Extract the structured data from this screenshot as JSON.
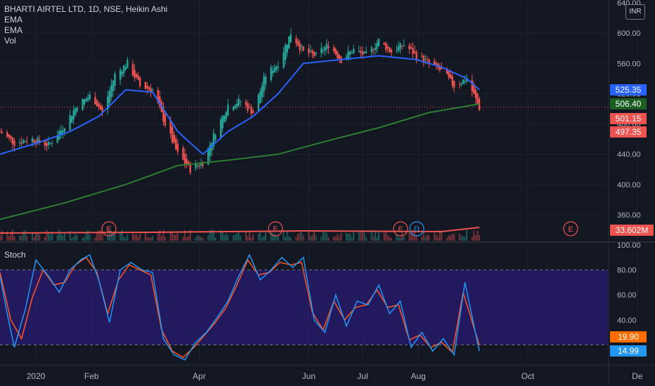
{
  "legend": {
    "title": "BHARTI AIRTEL LTD, 1D, NSE, Heikin Ashi",
    "line2": "EMA",
    "line3": "EMA",
    "line4": "Vol"
  },
  "price_axis": {
    "ticks": [
      "640.00",
      "600.00",
      "560.00",
      "520.00",
      "480.00",
      "440.00",
      "400.00",
      "360.00"
    ],
    "currency": "INR",
    "badges": {
      "ema_fast": "525.35",
      "ema_slow": "506.40",
      "close": "501.15",
      "low": "497.35",
      "volume": "33.602M"
    }
  },
  "stoch_axis": {
    "label": "Stoch",
    "ticks": [
      "100.00",
      "80.00",
      "60.00",
      "40.00"
    ],
    "badges": {
      "d": "19.90",
      "k": "14.99"
    }
  },
  "time_axis": {
    "labels": [
      "2020",
      "Feb",
      "Apr",
      "Jun",
      "Jul",
      "Aug",
      "Oct",
      "De"
    ]
  },
  "earnings_markers": [
    "E",
    "E",
    "E",
    "D",
    "E"
  ],
  "colors": {
    "background": "#131722",
    "up": "#26a69a",
    "down": "#ef5350",
    "ema_fast": "#2962ff",
    "ema_slow": "#2e7d32",
    "stoch_k": "#2196f3",
    "stoch_d": "#ff5722",
    "stoch_band": "#311b92"
  },
  "chart_data": {
    "type": "line",
    "title": "BHARTI AIRTEL LTD, 1D, NSE, Heikin Ashi",
    "price_range": [
      345,
      640
    ],
    "stoch_range": [
      0,
      100
    ],
    "price_close": [
      [
        "2019-12-12",
        470
      ],
      [
        "2019-12-20",
        455
      ],
      [
        "2019-12-30",
        460
      ],
      [
        "2020-01-08",
        452
      ],
      [
        "2020-01-16",
        475
      ],
      [
        "2020-01-24",
        505
      ],
      [
        "2020-02-01",
        518
      ],
      [
        "2020-02-07",
        495
      ],
      [
        "2020-02-14",
        545
      ],
      [
        "2020-02-21",
        560
      ],
      [
        "2020-02-28",
        530
      ],
      [
        "2020-03-06",
        525
      ],
      [
        "2020-03-13",
        480
      ],
      [
        "2020-03-20",
        440
      ],
      [
        "2020-03-27",
        420
      ],
      [
        "2020-04-03",
        430
      ],
      [
        "2020-04-10",
        470
      ],
      [
        "2020-04-17",
        505
      ],
      [
        "2020-04-24",
        510
      ],
      [
        "2020-05-01",
        495
      ],
      [
        "2020-05-08",
        545
      ],
      [
        "2020-05-15",
        560
      ],
      [
        "2020-05-22",
        600
      ],
      [
        "2020-05-29",
        575
      ],
      [
        "2020-06-05",
        570
      ],
      [
        "2020-06-12",
        585
      ],
      [
        "2020-06-19",
        565
      ],
      [
        "2020-06-26",
        578
      ],
      [
        "2020-07-03",
        570
      ],
      [
        "2020-07-10",
        590
      ],
      [
        "2020-07-17",
        575
      ],
      [
        "2020-07-24",
        585
      ],
      [
        "2020-07-31",
        570
      ],
      [
        "2020-08-07",
        560
      ],
      [
        "2020-08-14",
        550
      ],
      [
        "2020-08-21",
        530
      ],
      [
        "2020-08-28",
        540
      ],
      [
        "2020-09-04",
        501.15
      ]
    ],
    "ema_fast": [
      [
        "2019-12-12",
        440
      ],
      [
        "2020-01-02",
        455
      ],
      [
        "2020-01-20",
        470
      ],
      [
        "2020-02-05",
        490
      ],
      [
        "2020-02-20",
        525
      ],
      [
        "2020-03-06",
        522
      ],
      [
        "2020-03-20",
        470
      ],
      [
        "2020-04-03",
        440
      ],
      [
        "2020-04-17",
        470
      ],
      [
        "2020-05-01",
        490
      ],
      [
        "2020-05-15",
        520
      ],
      [
        "2020-05-29",
        560
      ],
      [
        "2020-06-19",
        565
      ],
      [
        "2020-07-10",
        570
      ],
      [
        "2020-07-31",
        565
      ],
      [
        "2020-08-14",
        555
      ],
      [
        "2020-08-28",
        540
      ],
      [
        "2020-09-04",
        525.35
      ]
    ],
    "ema_slow": [
      [
        "2019-12-12",
        354
      ],
      [
        "2020-01-16",
        375
      ],
      [
        "2020-02-20",
        400
      ],
      [
        "2020-03-20",
        425
      ],
      [
        "2020-04-17",
        432
      ],
      [
        "2020-05-15",
        440
      ],
      [
        "2020-06-12",
        458
      ],
      [
        "2020-07-10",
        475
      ],
      [
        "2020-08-07",
        495
      ],
      [
        "2020-09-04",
        506.4
      ]
    ],
    "volume_ma": [
      [
        "2019-12-12",
        0.55
      ],
      [
        "2020-03-06",
        0.6
      ],
      [
        "2020-05-29",
        0.7
      ],
      [
        "2020-08-14",
        0.65
      ],
      [
        "2020-09-04",
        0.95
      ]
    ],
    "stoch_k": [
      [
        "2019-12-12",
        75
      ],
      [
        "2019-12-16",
        45
      ],
      [
        "2019-12-20",
        18
      ],
      [
        "2019-12-26",
        48
      ],
      [
        "2020-01-01",
        88
      ],
      [
        "2020-01-08",
        75
      ],
      [
        "2020-01-14",
        62
      ],
      [
        "2020-01-20",
        80
      ],
      [
        "2020-01-26",
        88
      ],
      [
        "2020-01-31",
        92
      ],
      [
        "2020-02-05",
        72
      ],
      [
        "2020-02-11",
        38
      ],
      [
        "2020-02-17",
        80
      ],
      [
        "2020-02-23",
        86
      ],
      [
        "2020-02-29",
        80
      ],
      [
        "2020-03-06",
        78
      ],
      [
        "2020-03-12",
        25
      ],
      [
        "2020-03-18",
        12
      ],
      [
        "2020-03-24",
        8
      ],
      [
        "2020-03-30",
        22
      ],
      [
        "2020-04-05",
        30
      ],
      [
        "2020-04-11",
        42
      ],
      [
        "2020-04-17",
        55
      ],
      [
        "2020-04-23",
        75
      ],
      [
        "2020-04-29",
        92
      ],
      [
        "2020-05-05",
        72
      ],
      [
        "2020-05-11",
        80
      ],
      [
        "2020-05-17",
        90
      ],
      [
        "2020-05-23",
        82
      ],
      [
        "2020-05-29",
        90
      ],
      [
        "2020-06-04",
        40
      ],
      [
        "2020-06-10",
        30
      ],
      [
        "2020-06-16",
        60
      ],
      [
        "2020-06-22",
        35
      ],
      [
        "2020-06-28",
        55
      ],
      [
        "2020-07-04",
        52
      ],
      [
        "2020-07-10",
        68
      ],
      [
        "2020-07-16",
        45
      ],
      [
        "2020-07-22",
        55
      ],
      [
        "2020-07-28",
        18
      ],
      [
        "2020-08-03",
        30
      ],
      [
        "2020-08-09",
        15
      ],
      [
        "2020-08-15",
        25
      ],
      [
        "2020-08-21",
        12
      ],
      [
        "2020-08-27",
        70
      ],
      [
        "2020-09-04",
        14.99
      ]
    ],
    "stoch_d": [
      [
        "2019-12-12",
        78
      ],
      [
        "2019-12-18",
        40
      ],
      [
        "2019-12-24",
        25
      ],
      [
        "2019-12-30",
        58
      ],
      [
        "2020-01-05",
        80
      ],
      [
        "2020-01-11",
        68
      ],
      [
        "2020-01-17",
        70
      ],
      [
        "2020-01-23",
        84
      ],
      [
        "2020-01-29",
        90
      ],
      [
        "2020-02-04",
        78
      ],
      [
        "2020-02-10",
        45
      ],
      [
        "2020-02-16",
        72
      ],
      [
        "2020-02-22",
        84
      ],
      [
        "2020-02-28",
        80
      ],
      [
        "2020-03-05",
        76
      ],
      [
        "2020-03-11",
        32
      ],
      [
        "2020-03-17",
        15
      ],
      [
        "2020-03-23",
        10
      ],
      [
        "2020-03-29",
        18
      ],
      [
        "2020-04-04",
        28
      ],
      [
        "2020-04-10",
        38
      ],
      [
        "2020-04-16",
        50
      ],
      [
        "2020-04-22",
        68
      ],
      [
        "2020-04-28",
        88
      ],
      [
        "2020-05-04",
        76
      ],
      [
        "2020-05-10",
        78
      ],
      [
        "2020-05-16",
        86
      ],
      [
        "2020-05-22",
        84
      ],
      [
        "2020-05-28",
        86
      ],
      [
        "2020-06-03",
        46
      ],
      [
        "2020-06-09",
        32
      ],
      [
        "2020-06-15",
        55
      ],
      [
        "2020-06-21",
        40
      ],
      [
        "2020-06-27",
        50
      ],
      [
        "2020-07-03",
        52
      ],
      [
        "2020-07-09",
        64
      ],
      [
        "2020-07-15",
        50
      ],
      [
        "2020-07-21",
        52
      ],
      [
        "2020-07-27",
        24
      ],
      [
        "2020-08-02",
        28
      ],
      [
        "2020-08-08",
        18
      ],
      [
        "2020-08-14",
        22
      ],
      [
        "2020-08-20",
        14
      ],
      [
        "2020-08-26",
        62
      ],
      [
        "2020-09-04",
        19.9
      ]
    ]
  }
}
